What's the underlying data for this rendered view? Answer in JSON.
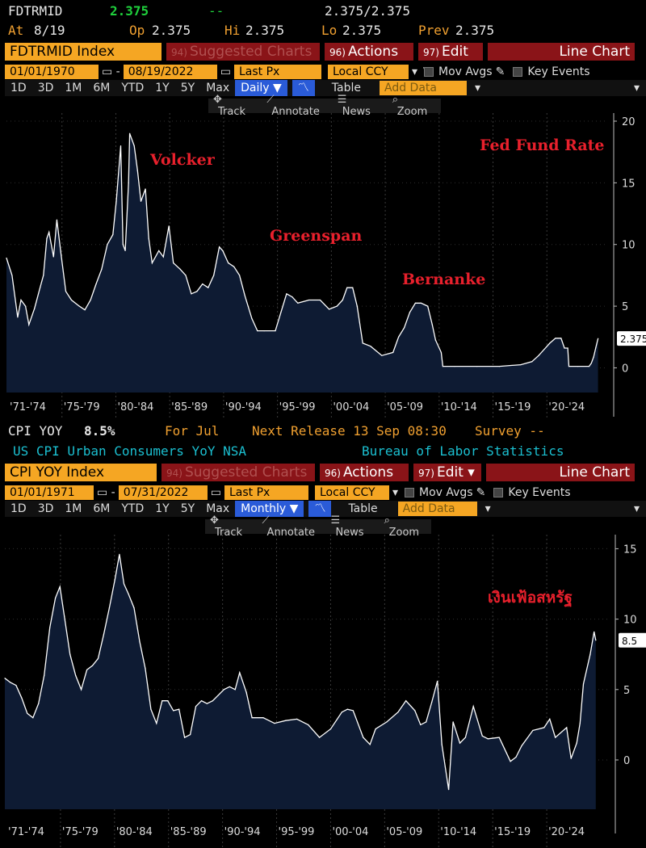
{
  "top": {
    "ticker": "FDTRMID",
    "last": "2.375",
    "change": "--",
    "bid_ask": "2.375/2.375",
    "at_label": "At",
    "at_value": "8/19",
    "op_label": "Op",
    "op_value": "2.375",
    "hi_label": "Hi",
    "hi_value": "2.375",
    "lo_label": "Lo",
    "lo_value": "2.375",
    "prev_label": "Prev",
    "prev_value": "2.375",
    "index_name": "FDTRMID Index",
    "suggested": "Suggested Charts",
    "suggested_num": "94)",
    "actions": "Actions ▾",
    "actions_num": "96)",
    "edit": "Edit ▾",
    "edit_num": "97)",
    "chart_type": "Line Chart",
    "start_date": "01/01/1970",
    "end_date": "08/19/2022",
    "price_field": "Last Px",
    "currency": "Local CCY",
    "mov_avgs": "Mov Avgs",
    "key_events": "Key Events",
    "periods": [
      "1D",
      "3D",
      "1M",
      "6M",
      "YTD",
      "1Y",
      "5Y",
      "Max"
    ],
    "frequency": "Daily ▼",
    "table": "Table",
    "add_data": "Add Data",
    "tools": [
      "Track",
      "Annotate",
      "News",
      "Zoom"
    ],
    "last_label": "2.375"
  },
  "bottom": {
    "ticker": "CPI YOY",
    "last": "8.5%",
    "for_label": "For Jul",
    "next_release": "Next Release 13 Sep 08:30",
    "survey": "Survey --",
    "description": "US CPI Urban Consumers YoY NSA",
    "source": "Bureau of Labor Statistics",
    "index_name": "CPI YOY Index",
    "suggested": "Suggested Charts",
    "suggested_num": "94)",
    "actions": "Actions ▾",
    "actions_num": "96)",
    "edit": "Edit ▾",
    "edit_num": "97)",
    "chart_type": "Line Chart",
    "start_date": "01/01/1971",
    "end_date": "07/31/2022",
    "price_field": "Last Px",
    "currency": "Local CCY",
    "mov_avgs": "Mov Avgs",
    "key_events": "Key Events",
    "periods": [
      "1D",
      "3D",
      "1M",
      "6M",
      "YTD",
      "1Y",
      "5Y",
      "Max"
    ],
    "frequency": "Monthly ▼",
    "table": "Table",
    "add_data": "Add Data",
    "tools": [
      "Track",
      "Annotate",
      "News",
      "Zoom"
    ],
    "last_label": "8.5"
  },
  "colors": {
    "accent": "#f5a623",
    "red_button": "#8a1418",
    "fill": "#0e1b33",
    "line": "#ffffff",
    "annotation": "#e8202c",
    "green": "#1fd03c",
    "cyan": "#1bbfd0"
  },
  "chart_data": [
    {
      "type": "area",
      "title": "Fed Fund Rate",
      "annotations": [
        "Volcker",
        "Greenspan",
        "Bernanke",
        "Fed Fund Rate"
      ],
      "x_tick_labels": [
        "'71-'74",
        "'75-'79",
        "'80-'84",
        "'85-'89",
        "'90-'94",
        "'95-'99",
        "'00-'04",
        "'05-'09",
        "'10-'14",
        "'15-'19",
        "'20-'24"
      ],
      "yticks": [
        0,
        5,
        10,
        15,
        20
      ],
      "ylim": [
        -2,
        20
      ],
      "xlim": [
        1970.0,
        2022.9
      ],
      "x": [
        1970.0,
        1970.5,
        1971.0,
        1971.3,
        1971.7,
        1972.0,
        1972.5,
        1973.0,
        1973.3,
        1973.6,
        1973.8,
        1974.2,
        1974.5,
        1974.9,
        1975.3,
        1975.8,
        1976.5,
        1977.0,
        1977.5,
        1978.0,
        1978.5,
        1979.0,
        1979.5,
        1979.8,
        1980.2,
        1980.4,
        1980.6,
        1980.9,
        1981.0,
        1981.4,
        1981.7,
        1982.0,
        1982.4,
        1982.7,
        1983.0,
        1983.6,
        1984.0,
        1984.5,
        1984.9,
        1985.5,
        1986.0,
        1986.5,
        1987.0,
        1987.5,
        1988.0,
        1988.5,
        1989.0,
        1989.3,
        1989.8,
        1990.3,
        1990.8,
        1991.3,
        1991.9,
        1992.4,
        1993.0,
        1994.0,
        1994.5,
        1995.0,
        1995.5,
        1996.0,
        1997.0,
        1998.0,
        1998.8,
        1999.5,
        2000.0,
        2000.4,
        2000.9,
        2001.3,
        2001.8,
        2002.5,
        2003.5,
        2004.5,
        2005.0,
        2005.5,
        2006.0,
        2006.5,
        2007.0,
        2007.6,
        2008.0,
        2008.3,
        2008.8,
        2008.95,
        2010.0,
        2012.0,
        2014.0,
        2015.9,
        2016.9,
        2017.5,
        2018.0,
        2018.5,
        2019.0,
        2019.5,
        2019.8,
        2020.1,
        2020.2,
        2021.0,
        2022.0,
        2022.2,
        2022.4,
        2022.6,
        2022.8
      ],
      "values": [
        8.9,
        7.5,
        4.1,
        5.5,
        5.0,
        3.5,
        4.8,
        6.5,
        7.5,
        10.5,
        11.0,
        9.0,
        12.0,
        9.0,
        6.2,
        5.5,
        5.0,
        4.7,
        5.5,
        6.8,
        8.0,
        10.0,
        10.8,
        13.5,
        18.0,
        10.0,
        9.5,
        15.0,
        19.0,
        18.0,
        16.0,
        13.5,
        14.5,
        10.5,
        8.5,
        9.5,
        9.0,
        11.5,
        8.5,
        8.0,
        7.5,
        6.0,
        6.2,
        6.8,
        6.5,
        7.5,
        9.8,
        9.5,
        8.5,
        8.2,
        7.5,
        5.8,
        4.0,
        3.0,
        3.0,
        3.0,
        4.5,
        6.0,
        5.75,
        5.25,
        5.5,
        5.5,
        4.75,
        5.0,
        5.5,
        6.5,
        6.5,
        5.0,
        2.0,
        1.75,
        1.0,
        1.25,
        2.5,
        3.25,
        4.5,
        5.25,
        5.25,
        5.0,
        3.5,
        2.25,
        1.25,
        0.12,
        0.12,
        0.12,
        0.12,
        0.25,
        0.5,
        1.0,
        1.5,
        2.0,
        2.4,
        2.4,
        1.6,
        1.6,
        0.12,
        0.12,
        0.12,
        0.375,
        0.875,
        1.625,
        2.375
      ]
    },
    {
      "type": "area",
      "title": "เงินเฟ้อสหรัฐ",
      "annotations": [
        "เงินเฟ้อสหรัฐ"
      ],
      "x_tick_labels": [
        "'71-'74",
        "'75-'79",
        "'80-'84",
        "'85-'89",
        "'90-'94",
        "'95-'99",
        "'00-'04",
        "'05-'09",
        "'10-'14",
        "'15-'19",
        "'20-'24"
      ],
      "yticks": [
        0,
        5,
        10,
        15
      ],
      "ylim": [
        -3.5,
        16
      ],
      "xlim": [
        1970.0,
        2022.9
      ],
      "x": [
        1970.0,
        1970.5,
        1971.0,
        1971.5,
        1972.0,
        1972.5,
        1973.0,
        1973.5,
        1974.0,
        1974.5,
        1974.9,
        1975.3,
        1975.8,
        1976.3,
        1976.8,
        1977.3,
        1977.8,
        1978.3,
        1978.8,
        1979.3,
        1979.8,
        1980.2,
        1980.6,
        1981.0,
        1981.5,
        1982.0,
        1982.5,
        1983.0,
        1983.5,
        1984.0,
        1984.5,
        1985.0,
        1985.5,
        1986.0,
        1986.5,
        1987.0,
        1987.5,
        1988.0,
        1988.5,
        1989.0,
        1989.5,
        1990.0,
        1990.5,
        1990.9,
        1991.5,
        1992.0,
        1993.0,
        1994.0,
        1995.0,
        1996.0,
        1997.0,
        1998.0,
        1999.0,
        2000.0,
        2000.5,
        2001.0,
        2001.9,
        2002.5,
        2003.0,
        2004.0,
        2005.0,
        2005.7,
        2006.5,
        2007.0,
        2007.5,
        2008.0,
        2008.5,
        2008.9,
        2009.2,
        2009.5,
        2009.9,
        2010.5,
        2011.0,
        2011.7,
        2012.5,
        2013.0,
        2014.0,
        2015.0,
        2015.5,
        2016.0,
        2017.0,
        2018.0,
        2018.5,
        2019.0,
        2020.0,
        2020.4,
        2020.9,
        2021.2,
        2021.5,
        2021.9,
        2022.1,
        2022.45,
        2022.6
      ],
      "values": [
        5.8,
        5.5,
        5.3,
        4.4,
        3.3,
        3.0,
        4.0,
        6.0,
        9.4,
        11.5,
        12.3,
        10.2,
        7.5,
        6.0,
        5.0,
        6.4,
        6.7,
        7.2,
        8.9,
        10.8,
        12.8,
        14.6,
        12.5,
        11.8,
        10.8,
        8.4,
        6.5,
        3.6,
        2.6,
        4.2,
        4.2,
        3.5,
        3.6,
        1.6,
        1.8,
        3.8,
        4.2,
        4.0,
        4.2,
        4.6,
        5.0,
        5.2,
        5.0,
        6.2,
        4.8,
        3.0,
        3.0,
        2.6,
        2.8,
        2.9,
        2.5,
        1.6,
        2.2,
        3.4,
        3.6,
        3.5,
        1.6,
        1.1,
        2.2,
        2.7,
        3.4,
        4.2,
        3.5,
        2.5,
        2.7,
        4.1,
        5.6,
        1.1,
        -0.5,
        -2.1,
        2.7,
        1.2,
        1.6,
        3.8,
        1.7,
        1.5,
        1.6,
        -0.1,
        0.2,
        1.0,
        2.1,
        2.3,
        2.9,
        1.6,
        2.3,
        0.1,
        1.2,
        2.6,
        5.4,
        6.8,
        7.5,
        9.1,
        8.5
      ]
    }
  ]
}
